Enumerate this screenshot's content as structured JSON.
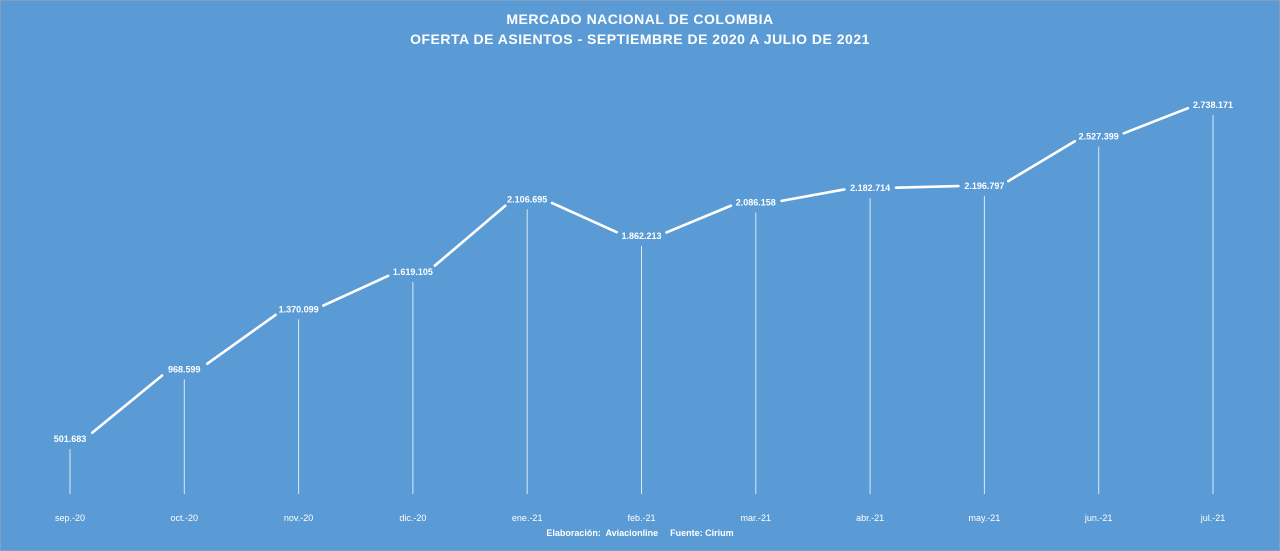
{
  "chart_data": {
    "type": "line",
    "title": "MERCADO NACIONAL DE COLOMBIA",
    "subtitle": "OFERTA DE ASIENTOS - SEPTIEMBRE DE 2020 A JULIO DE 2021",
    "categories": [
      "sep.-20",
      "oct.-20",
      "nov.-20",
      "dic.-20",
      "ene.-21",
      "feb.-21",
      "mar.-21",
      "abr.-21",
      "may.-21",
      "jun.-21",
      "jul.-21"
    ],
    "values": [
      501683,
      968599,
      1370099,
      1619105,
      2106695,
      1862213,
      2086158,
      2182714,
      2196797,
      2527399,
      2738171
    ],
    "value_labels": [
      "501.683",
      "968.599",
      "1.370.099",
      "1.619.105",
      "2.106.695",
      "1.862.213",
      "2.086.158",
      "2.182.714",
      "2.196.797",
      "2.527.399",
      "2.738.171"
    ],
    "xlabel": "",
    "ylabel": "",
    "grid": false,
    "legend": "none",
    "drop_lines": true
  },
  "footer": {
    "elaboracion": "Elaboración:  Aviacionline",
    "fuente": "Fuente: Cirium"
  },
  "colors": {
    "background": "#5b9bd5",
    "line": "#ffffff",
    "text": "#ffffff"
  }
}
